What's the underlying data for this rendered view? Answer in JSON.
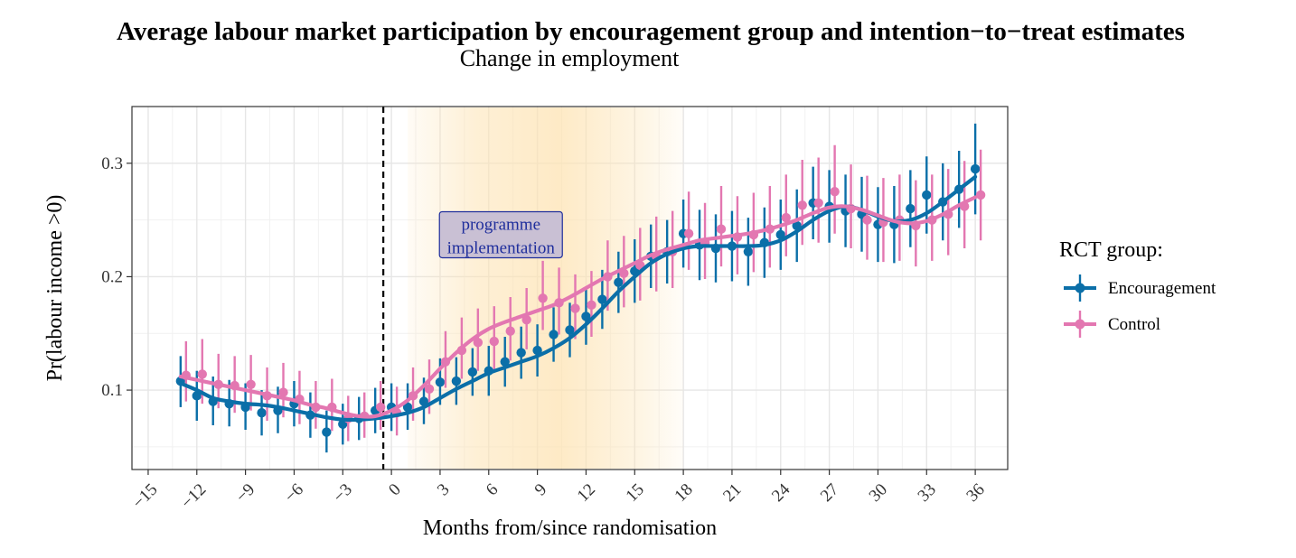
{
  "chart_data": {
    "type": "line",
    "title": "Average labour market participation by encouragement group and intention−to−treat estimates",
    "subtitle": "Change in employment",
    "xlabel": "Months from/since randomisation",
    "ylabel": "Pr(labour income >0)",
    "xlim": [
      -16,
      38
    ],
    "ylim": [
      0.03,
      0.35
    ],
    "x_ticks": [
      -15,
      -12,
      -9,
      -6,
      -3,
      0,
      3,
      6,
      9,
      12,
      15,
      18,
      21,
      24,
      27,
      30,
      33,
      36
    ],
    "x_tick_labels": [
      "−15",
      "−12",
      "−9",
      "−6",
      "−3",
      "0",
      "3",
      "6",
      "9",
      "12",
      "15",
      "18",
      "21",
      "24",
      "27",
      "30",
      "33",
      "36"
    ],
    "y_ticks": [
      0.1,
      0.2,
      0.3
    ],
    "y_tick_labels": [
      "0.1",
      "0.2",
      "0.3"
    ],
    "grid": true,
    "reference_line_x": -0.5,
    "shaded_region": {
      "x": [
        1,
        18
      ],
      "label_lines": [
        "programme",
        "implementation"
      ]
    },
    "legend_title": "RCT group:",
    "legend_position": "right",
    "x": [
      -13,
      -12,
      -11,
      -10,
      -9,
      -8,
      -7,
      -6,
      -5,
      -4,
      -3,
      -2,
      -1,
      0,
      1,
      2,
      3,
      4,
      5,
      6,
      7,
      8,
      9,
      10,
      11,
      12,
      13,
      14,
      15,
      16,
      17,
      18,
      19,
      20,
      21,
      22,
      23,
      24,
      25,
      26,
      27,
      28,
      29,
      30,
      31,
      32,
      33,
      34,
      35,
      36
    ],
    "series": [
      {
        "name": "Encouragement",
        "color": "#0b6fa8",
        "values": [
          0.108,
          0.095,
          0.09,
          0.088,
          0.085,
          0.08,
          0.082,
          0.088,
          0.078,
          0.063,
          0.07,
          0.075,
          0.082,
          0.085,
          0.085,
          0.09,
          0.107,
          0.108,
          0.116,
          0.117,
          0.125,
          0.133,
          0.135,
          0.149,
          0.153,
          0.165,
          0.18,
          0.195,
          0.205,
          0.218,
          0.222,
          0.238,
          0.228,
          0.225,
          0.227,
          0.222,
          0.23,
          0.237,
          0.245,
          0.265,
          0.262,
          0.258,
          0.255,
          0.246,
          0.246,
          0.26,
          0.272,
          0.266,
          0.277,
          0.295
        ],
        "error_low": [
          0.085,
          0.073,
          0.069,
          0.068,
          0.065,
          0.06,
          0.062,
          0.068,
          0.058,
          0.045,
          0.052,
          0.056,
          0.062,
          0.064,
          0.065,
          0.07,
          0.087,
          0.087,
          0.095,
          0.095,
          0.103,
          0.11,
          0.112,
          0.125,
          0.129,
          0.14,
          0.154,
          0.168,
          0.177,
          0.19,
          0.194,
          0.208,
          0.197,
          0.195,
          0.196,
          0.192,
          0.199,
          0.206,
          0.213,
          0.233,
          0.23,
          0.226,
          0.222,
          0.213,
          0.212,
          0.226,
          0.238,
          0.232,
          0.243,
          0.255
        ],
        "error_high": [
          0.13,
          0.117,
          0.112,
          0.109,
          0.106,
          0.1,
          0.103,
          0.108,
          0.098,
          0.082,
          0.088,
          0.094,
          0.102,
          0.106,
          0.106,
          0.111,
          0.128,
          0.129,
          0.137,
          0.139,
          0.147,
          0.156,
          0.158,
          0.173,
          0.177,
          0.19,
          0.206,
          0.222,
          0.233,
          0.246,
          0.25,
          0.268,
          0.259,
          0.255,
          0.258,
          0.252,
          0.261,
          0.268,
          0.277,
          0.297,
          0.294,
          0.29,
          0.288,
          0.279,
          0.28,
          0.294,
          0.306,
          0.3,
          0.311,
          0.335
        ],
        "smooth": [
          0.106,
          0.1,
          0.093,
          0.09,
          0.088,
          0.087,
          0.085,
          0.082,
          0.079,
          0.076,
          0.074,
          0.074,
          0.075,
          0.077,
          0.08,
          0.085,
          0.093,
          0.101,
          0.108,
          0.115,
          0.12,
          0.125,
          0.13,
          0.137,
          0.146,
          0.158,
          0.172,
          0.187,
          0.2,
          0.212,
          0.22,
          0.225,
          0.227,
          0.227,
          0.227,
          0.227,
          0.228,
          0.232,
          0.24,
          0.25,
          0.258,
          0.262,
          0.259,
          0.253,
          0.249,
          0.25,
          0.256,
          0.266,
          0.277,
          0.288
        ]
      },
      {
        "name": "Control",
        "color": "#e377b1",
        "values": [
          0.113,
          0.114,
          0.105,
          0.104,
          0.105,
          0.095,
          0.098,
          0.092,
          0.085,
          0.085,
          0.075,
          0.077,
          0.085,
          0.08,
          0.095,
          0.101,
          0.125,
          0.135,
          0.142,
          0.143,
          0.152,
          0.162,
          0.181,
          0.177,
          0.172,
          0.175,
          0.2,
          0.203,
          0.21,
          0.218,
          0.222,
          0.238,
          0.23,
          0.242,
          0.235,
          0.237,
          0.242,
          0.252,
          0.263,
          0.265,
          0.275,
          0.26,
          0.25,
          0.248,
          0.25,
          0.245,
          0.25,
          0.255,
          0.262,
          0.272
        ],
        "error_low": [
          0.09,
          0.088,
          0.084,
          0.08,
          0.082,
          0.073,
          0.076,
          0.07,
          0.066,
          0.064,
          0.055,
          0.058,
          0.065,
          0.06,
          0.073,
          0.079,
          0.102,
          0.11,
          0.117,
          0.118,
          0.126,
          0.136,
          0.153,
          0.149,
          0.145,
          0.147,
          0.17,
          0.173,
          0.179,
          0.187,
          0.19,
          0.206,
          0.198,
          0.209,
          0.202,
          0.204,
          0.208,
          0.218,
          0.228,
          0.23,
          0.238,
          0.225,
          0.215,
          0.213,
          0.214,
          0.209,
          0.214,
          0.219,
          0.225,
          0.232
        ],
        "error_high": [
          0.143,
          0.145,
          0.132,
          0.13,
          0.131,
          0.12,
          0.124,
          0.117,
          0.108,
          0.11,
          0.095,
          0.098,
          0.108,
          0.103,
          0.12,
          0.127,
          0.152,
          0.164,
          0.172,
          0.174,
          0.182,
          0.19,
          0.214,
          0.208,
          0.202,
          0.205,
          0.232,
          0.236,
          0.243,
          0.253,
          0.258,
          0.275,
          0.265,
          0.28,
          0.271,
          0.274,
          0.28,
          0.29,
          0.303,
          0.305,
          0.316,
          0.299,
          0.289,
          0.287,
          0.29,
          0.285,
          0.29,
          0.295,
          0.302,
          0.312
        ],
        "smooth": [
          0.112,
          0.109,
          0.106,
          0.103,
          0.1,
          0.097,
          0.094,
          0.091,
          0.087,
          0.084,
          0.08,
          0.077,
          0.077,
          0.082,
          0.091,
          0.104,
          0.119,
          0.133,
          0.145,
          0.154,
          0.16,
          0.165,
          0.17,
          0.175,
          0.182,
          0.19,
          0.198,
          0.205,
          0.212,
          0.219,
          0.224,
          0.228,
          0.232,
          0.234,
          0.236,
          0.238,
          0.241,
          0.245,
          0.25,
          0.256,
          0.261,
          0.262,
          0.259,
          0.254,
          0.249,
          0.247,
          0.249,
          0.255,
          0.263,
          0.27
        ]
      }
    ]
  }
}
